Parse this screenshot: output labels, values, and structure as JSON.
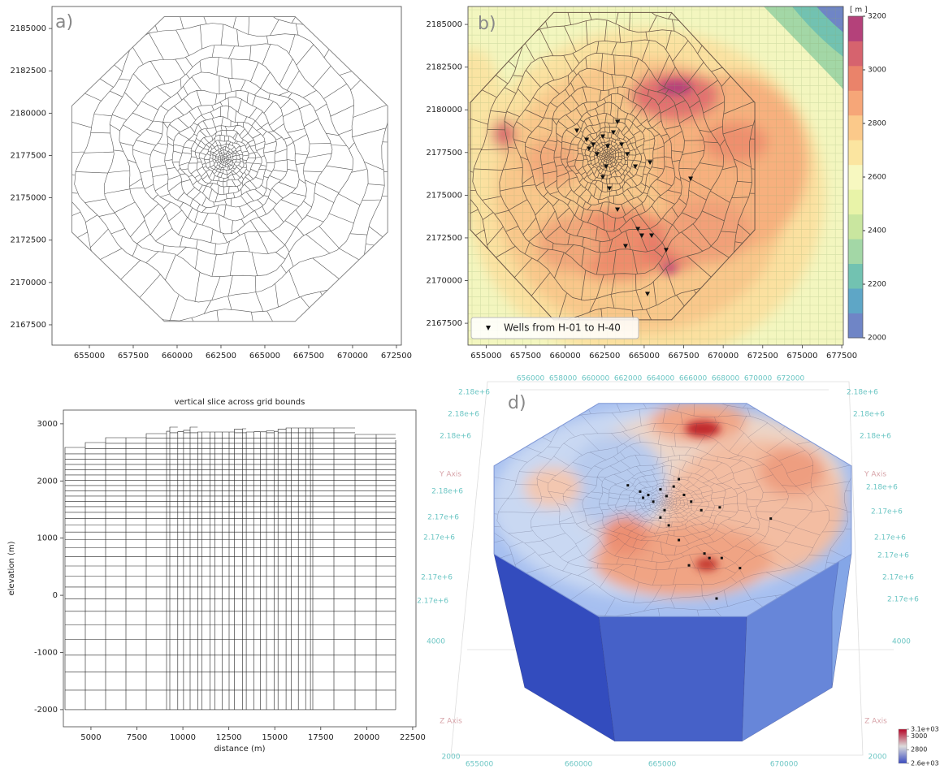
{
  "chart_data": [
    {
      "type": "mesh",
      "panel_label": "a)",
      "xlim": [
        652870,
        672780
      ],
      "ylim": [
        2166300,
        2186300
      ],
      "xticks": [
        655000,
        657500,
        660000,
        662500,
        665000,
        667500,
        670000,
        672500
      ],
      "yticks": [
        2167500,
        2170000,
        2172500,
        2175000,
        2177500,
        2180000,
        2182500,
        2185000
      ]
    },
    {
      "type": "mesh-map",
      "panel_label": "b)",
      "xlim": [
        653850,
        677600
      ],
      "ylim": [
        2166220,
        2186050
      ],
      "xticks": [
        655000,
        657500,
        660000,
        662500,
        665000,
        667500,
        670000,
        672500,
        675000,
        677500
      ],
      "yticks": [
        2167500,
        2170000,
        2172500,
        2175000,
        2177500,
        2180000,
        2182500,
        2185000
      ],
      "legend": "lower left",
      "series": [
        {
          "name": "Wells from  H-01 to H-40",
          "color": "#111111",
          "x": [
            660740,
            661360,
            661770,
            661510,
            662380,
            662690,
            663050,
            663310,
            663570,
            663930,
            662590,
            662380,
            662800,
            663310,
            664600,
            664850,
            665470,
            663820,
            666390,
            667940,
            665210,
            662020,
            664440,
            665370
          ],
          "y": [
            2178780,
            2178250,
            2177970,
            2177730,
            2178440,
            2177870,
            2178680,
            2179300,
            2177970,
            2177400,
            2176680,
            2176060,
            2175400,
            2174160,
            2173020,
            2172640,
            2172640,
            2172020,
            2171790,
            2175970,
            2169220,
            2177400,
            2176680,
            2176920
          ]
        }
      ],
      "colorbar": {
        "label": "[ m ]",
        "lim": [
          2000,
          3200
        ],
        "ticks": [
          2000,
          2200,
          2400,
          2600,
          2800,
          3000,
          3200
        ],
        "colors": [
          "#6f85c6",
          "#5ea6c6",
          "#72c2b1",
          "#a3d7a6",
          "#c9e69f",
          "#e8f3a8",
          "#f7f8c0",
          "#fbe5a0",
          "#fbc98a",
          "#f6a678",
          "#ea836a",
          "#d6636e",
          "#b4417a"
        ]
      }
    },
    {
      "type": "mesh-slice",
      "title": "vertical slice across grid bounds",
      "xlabel": "distance (m)",
      "ylabel": "elevation (m)",
      "xlim": [
        3500,
        22680
      ],
      "ylim": [
        -2300,
        3240
      ],
      "xticks": [
        5000,
        7500,
        10000,
        12500,
        15000,
        17500,
        20000,
        22500
      ],
      "yticks": [
        -2000,
        -1000,
        0,
        1000,
        2000,
        3000
      ]
    },
    {
      "type": "surface-3d",
      "panel_label": "d)",
      "top_labels": [
        "656000",
        "658000",
        "660000",
        "662000",
        "664000",
        "666000",
        "668000",
        "670000",
        "672000"
      ],
      "left_labels": [
        "2.18e+6",
        "2.18e+6",
        "2.18e+6",
        "Y Axis",
        "2.18e+6",
        "2.17e+6",
        "2.17e+6",
        "2.17e+6",
        "2.17e+6",
        "4000"
      ],
      "right_labels": [
        "2.18e+6",
        "2.18e+6",
        "2.18e+6",
        "Y Axis",
        "2.18e+6",
        "2.17e+6",
        "2.17e+6",
        "2.17e+6",
        "2.17e+6",
        "2.17e+6",
        "4000"
      ],
      "bottom_labels": [
        "Z Axis",
        "2000",
        "655000",
        "660000",
        "665000",
        "670000",
        "Z Axis",
        "2000"
      ],
      "colorbar": {
        "lim": [
          2600,
          3100
        ],
        "ticks": [
          {
            "value": 3100,
            "label": "3.1e+03"
          },
          3000,
          2800,
          {
            "value": 2600,
            "label": "2.6e+03"
          }
        ],
        "colors": [
          "#3b4cc0",
          "#dddcdc",
          "#b40426"
        ]
      }
    }
  ]
}
